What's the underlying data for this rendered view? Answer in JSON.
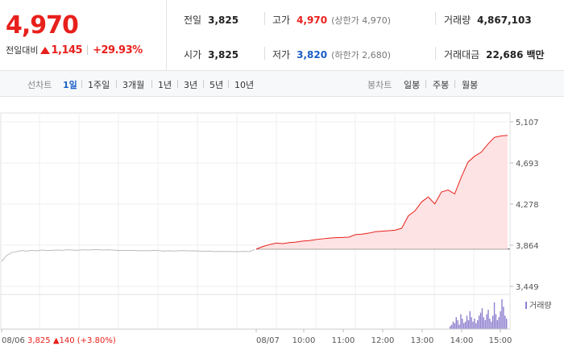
{
  "quote": {
    "price": "4,970",
    "change_label": "전일대비",
    "change_value": "1,145",
    "change_rate": "+29.93%",
    "prev_close": {
      "label": "전일",
      "value": "3,825"
    },
    "open": {
      "label": "시가",
      "value": "3,825"
    },
    "high": {
      "label": "고가",
      "value": "4,970",
      "limit": "(상한가 4,970)"
    },
    "low": {
      "label": "저가",
      "value": "3,820",
      "limit": "(하한가 2,680)"
    },
    "volume": {
      "label": "거래량",
      "value": "4,867,103"
    },
    "amount": {
      "label": "거래대금",
      "value": "22,686",
      "unit": "백만"
    }
  },
  "tabs": {
    "line_label": "선차트",
    "line_tabs": [
      "1일",
      "1주일",
      "3개월",
      "1년",
      "3년",
      "5년",
      "10년"
    ],
    "active": "1일",
    "candle_label": "봉차트",
    "candle_tabs": [
      "일봉",
      "주봉",
      "월봉"
    ]
  },
  "chart_data": {
    "type": "line",
    "y_ticks": [
      "5,107",
      "4,693",
      "4,278",
      "3,864",
      "3,449"
    ],
    "ylim": [
      3449,
      5107
    ],
    "prev_close": 3825,
    "x_ticks": [
      "08/06",
      "08/07",
      "10:00",
      "11:00",
      "12:00",
      "13:00",
      "14:00",
      "15:00"
    ],
    "prev_day_series": {
      "name": "08/06",
      "values": [
        3700,
        3760,
        3790,
        3800,
        3810,
        3805,
        3812,
        3808,
        3815,
        3810,
        3812,
        3815,
        3812,
        3818,
        3815,
        3812,
        3818,
        3815,
        3818,
        3820,
        3815,
        3818,
        3815,
        3810,
        3812,
        3810,
        3812,
        3808,
        3810,
        3808,
        3812,
        3810,
        3805,
        3808,
        3805,
        3808,
        3810,
        3806,
        3808,
        3805,
        3802,
        3805,
        3800,
        3802,
        3800,
        3802,
        3798,
        3800,
        3802,
        3800,
        3820
      ]
    },
    "today_series": {
      "name": "08/07",
      "times": [
        "09:00",
        "09:15",
        "09:30",
        "09:45",
        "10:00",
        "10:15",
        "10:30",
        "10:45",
        "11:00",
        "11:15",
        "11:30",
        "11:45",
        "12:00",
        "12:15",
        "12:30",
        "12:45",
        "13:00",
        "13:10",
        "13:20",
        "13:30",
        "13:40",
        "13:50",
        "14:00",
        "14:05",
        "14:10",
        "14:15",
        "14:20",
        "14:25",
        "14:30",
        "14:35",
        "14:40",
        "14:45",
        "14:50",
        "14:55",
        "15:00",
        "15:05",
        "15:10",
        "15:15",
        "15:20"
      ],
      "values": [
        3825,
        3850,
        3870,
        3885,
        3880,
        3890,
        3895,
        3905,
        3910,
        3920,
        3928,
        3935,
        3940,
        3942,
        3945,
        3970,
        3975,
        3985,
        4000,
        4005,
        4010,
        4015,
        4035,
        4160,
        4210,
        4300,
        4350,
        4280,
        4400,
        4420,
        4380,
        4550,
        4700,
        4760,
        4800,
        4880,
        4950,
        4965,
        4970
      ]
    },
    "volume_label": "거래량",
    "volume_bars": [
      2,
      3,
      5,
      4,
      8,
      6,
      3,
      10,
      7,
      4,
      5,
      9,
      6,
      12,
      8,
      5,
      7,
      4,
      6,
      9,
      11,
      14,
      8,
      6,
      10,
      13,
      7,
      5,
      9,
      18,
      10,
      6,
      8,
      12,
      20,
      15,
      9,
      7
    ]
  },
  "bottom": {
    "prev_date": "08/06",
    "prev_close": "3,825",
    "prev_change": "140",
    "prev_rate": "(+3.80%)"
  },
  "colors": {
    "rise": "#e8201c",
    "fall": "#1a5ec8",
    "area_fill": "#fde3e3",
    "prev_line": "#bbbbbb",
    "volume": "#8f7fcf"
  }
}
